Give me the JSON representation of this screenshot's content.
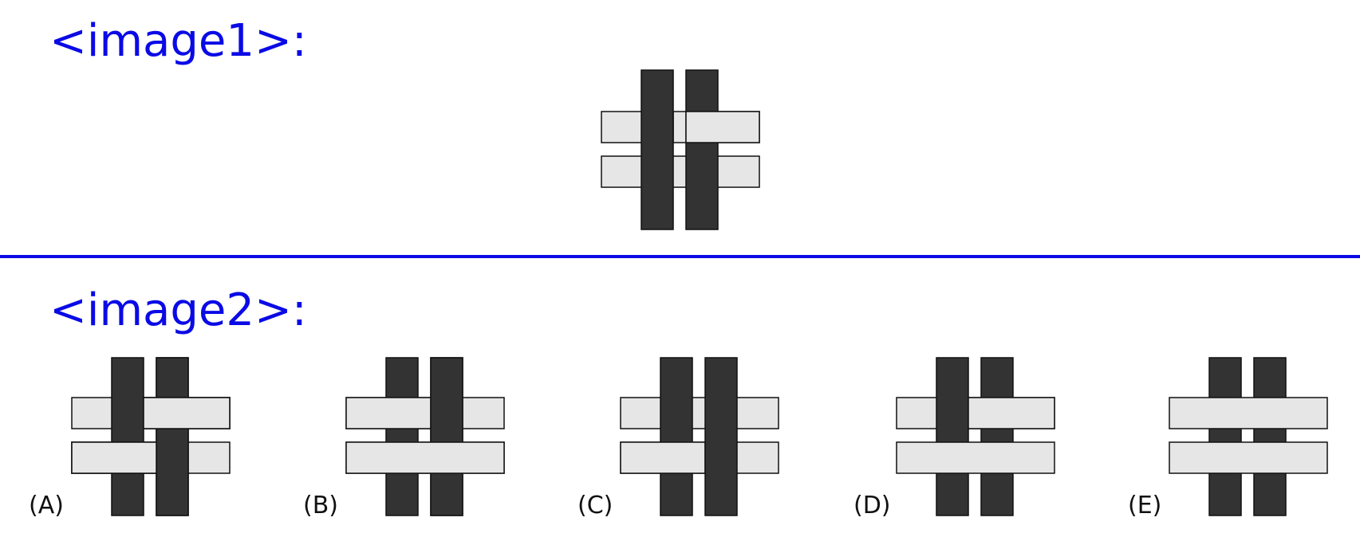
{
  "headings": {
    "image1": "<image1>:",
    "image2": "<image2>:"
  },
  "options": [
    {
      "label": "(A)"
    },
    {
      "label": "(B)"
    },
    {
      "label": "(C)"
    },
    {
      "label": "(D)"
    },
    {
      "label": "(E)"
    }
  ],
  "colors": {
    "heading": "#0a0ae6",
    "dark_strip": "#333333",
    "light_strip": "#e6e6e6",
    "outline": "#111111"
  }
}
